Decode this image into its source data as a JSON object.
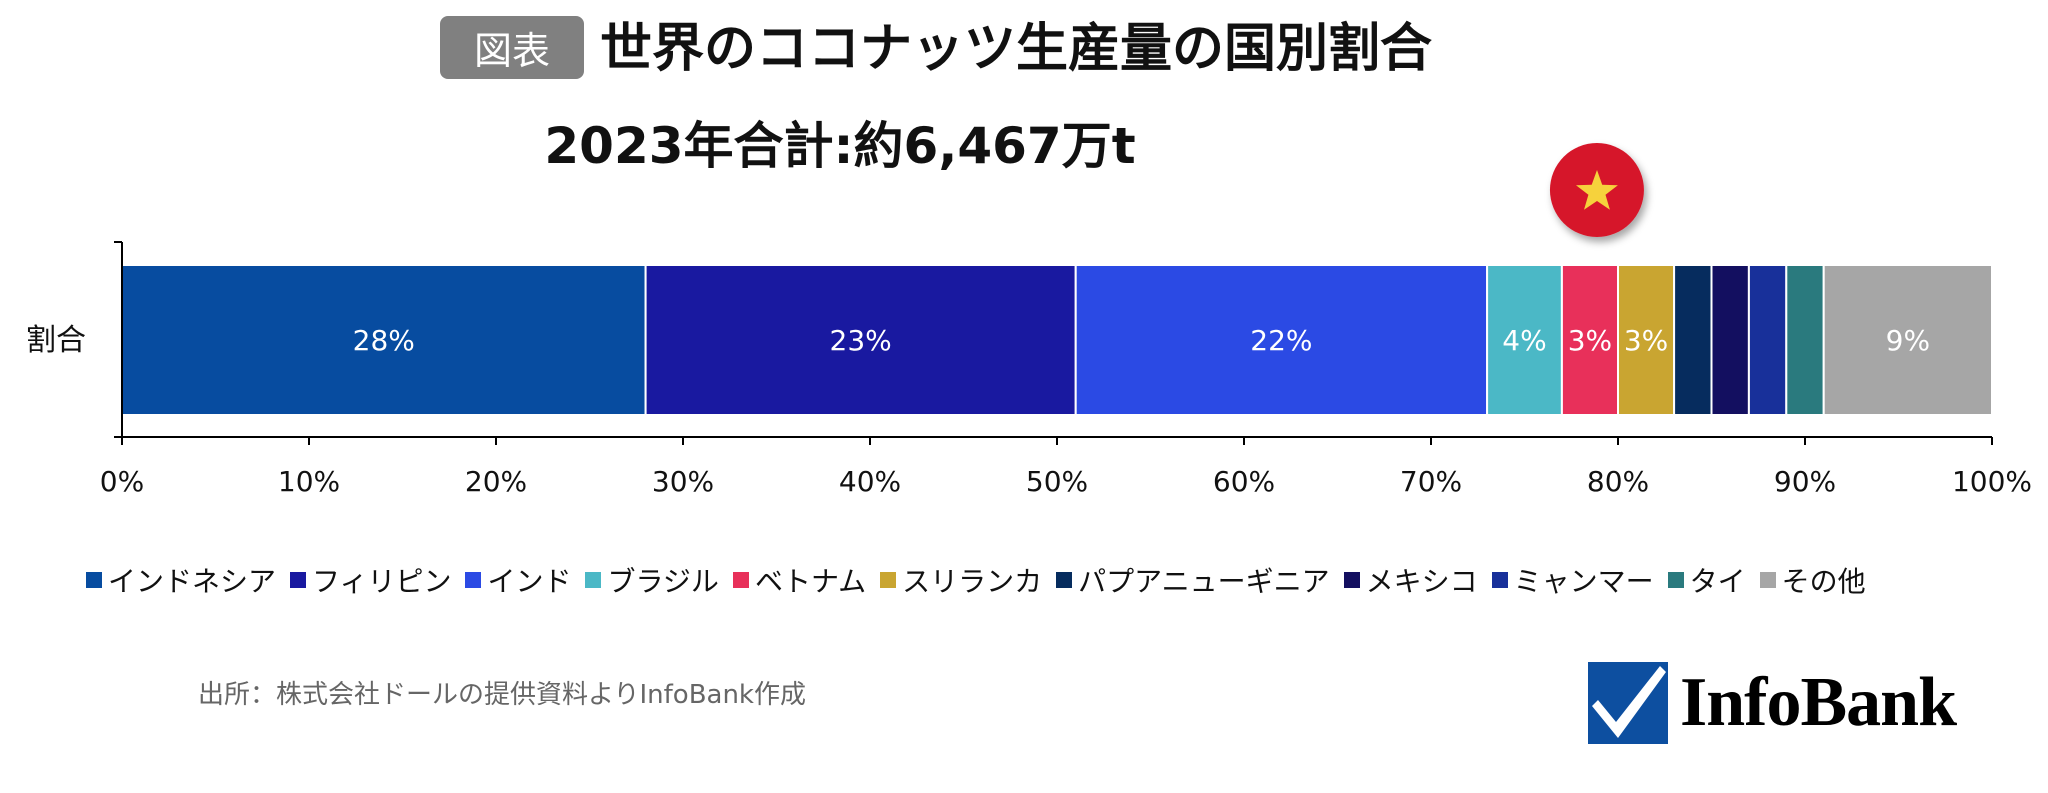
{
  "header": {
    "badge": "図表",
    "title": "世界のココナッツ生産量の国別割合",
    "subtitle": "2023年合計:約6,467万t"
  },
  "source_text": "出所：株式会社ドールの提供資料よりInfoBank作成",
  "logo": {
    "text": "InfoBank",
    "brand_color": "#0d4fa0"
  },
  "flag_icon": {
    "name": "vietnam-flag-icon",
    "bg": "#d6192a",
    "star": "#f6d23c"
  },
  "chart_data": {
    "type": "bar",
    "orientation": "horizontal",
    "stacked": true,
    "categories": [
      "割合"
    ],
    "xlim": [
      0,
      100
    ],
    "x_ticks": [
      "0%",
      "10%",
      "20%",
      "30%",
      "40%",
      "50%",
      "60%",
      "70%",
      "80%",
      "90%",
      "100%"
    ],
    "legend_position": "bottom",
    "grid": false,
    "series": [
      {
        "name": "インドネシア",
        "value": 28,
        "label": "28%",
        "color": "#074ca0"
      },
      {
        "name": "フィリピン",
        "value": 23,
        "label": "23%",
        "color": "#1919a0"
      },
      {
        "name": "インド",
        "value": 22,
        "label": "22%",
        "color": "#2b4ae4"
      },
      {
        "name": "ブラジル",
        "value": 4,
        "label": "4%",
        "color": "#4bb8c6"
      },
      {
        "name": "ベトナム",
        "value": 3,
        "label": "3%",
        "color": "#e8305a"
      },
      {
        "name": "スリランカ",
        "value": 3,
        "label": "3%",
        "color": "#c9a531"
      },
      {
        "name": "パプアニューギニア",
        "value": 2,
        "label": "",
        "color": "#062c5e"
      },
      {
        "name": "メキシコ",
        "value": 2,
        "label": "",
        "color": "#130f60"
      },
      {
        "name": "ミャンマー",
        "value": 2,
        "label": "",
        "color": "#18309a"
      },
      {
        "name": "タイ",
        "value": 2,
        "label": "",
        "color": "#2a7a7e"
      },
      {
        "name": "その他",
        "value": 9,
        "label": "9%",
        "color": "#a6a6a6"
      }
    ]
  }
}
